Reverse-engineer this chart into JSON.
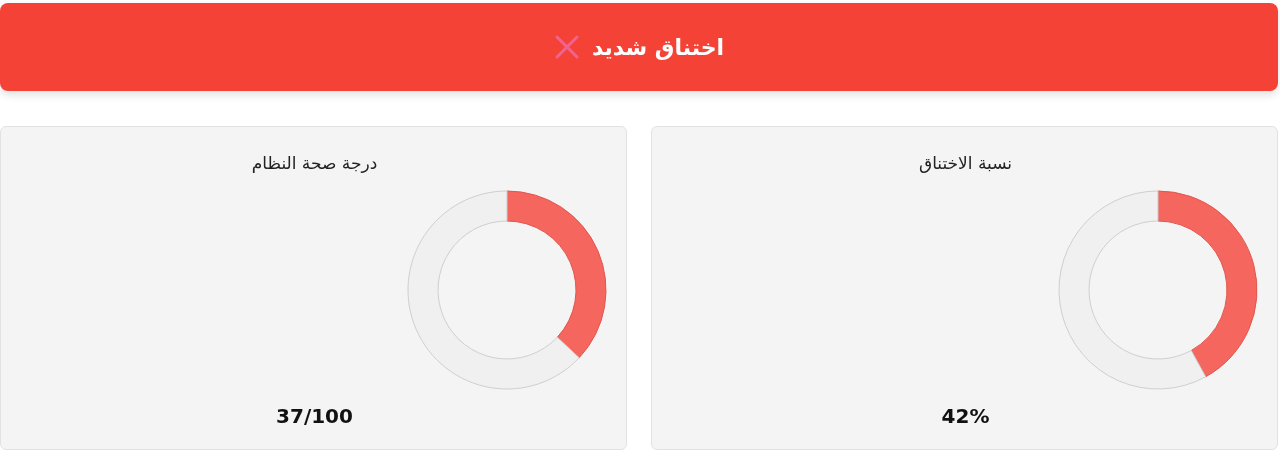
{
  "chart_data": [
    {
      "type": "other",
      "title": "اختناق شديد"
    },
    {
      "type": "donut",
      "title": "نسبة الاختناق",
      "categories": [
        null,
        null
      ],
      "values": [
        42,
        58
      ],
      "colors": [
        "#f4665e",
        "#f0f0f0"
      ],
      "annotations": [
        "42%"
      ]
    },
    {
      "type": "donut",
      "title": "درجة صحة النظام",
      "categories": [
        null,
        null
      ],
      "values": [
        37,
        63
      ],
      "colors": [
        "#f4665e",
        "#f0f0f0"
      ],
      "annotations": [
        "37/100"
      ]
    }
  ]
}
